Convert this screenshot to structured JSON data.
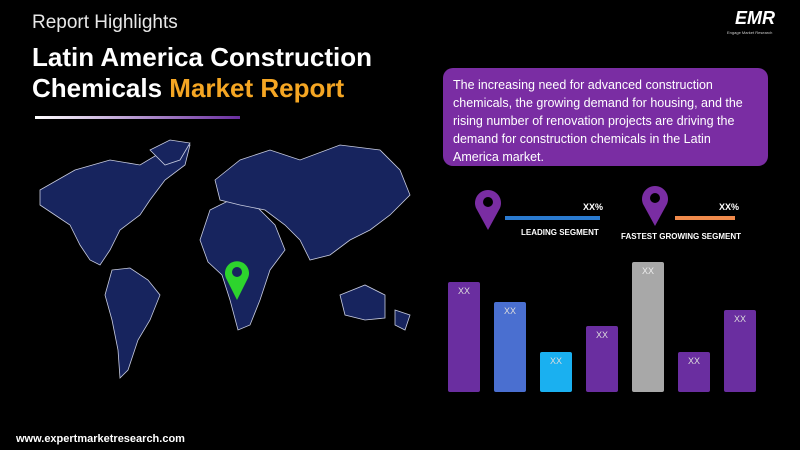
{
  "header": {
    "subtitle": "Report Highlights",
    "title_part1": "Latin America Construction Chemicals ",
    "title_part2": "Market Report"
  },
  "logo": {
    "name": "EMR",
    "tagline": "Engage Market Research"
  },
  "description": "The increasing need for advanced construction chemicals, the growing demand for housing, and the rising number of renovation projects are driving the demand for construction chemicals in the Latin America market.",
  "segments": [
    {
      "value_label": "XX%",
      "label": "LEADING SEGMENT"
    },
    {
      "value_label": "XX%",
      "label": "FASTEST GROWING SEGMENT"
    }
  ],
  "bars": [
    "XX",
    "XX",
    "XX",
    "XX",
    "XX",
    "XX",
    "XX"
  ],
  "footer": "www.expertmarketresearch.com"
}
